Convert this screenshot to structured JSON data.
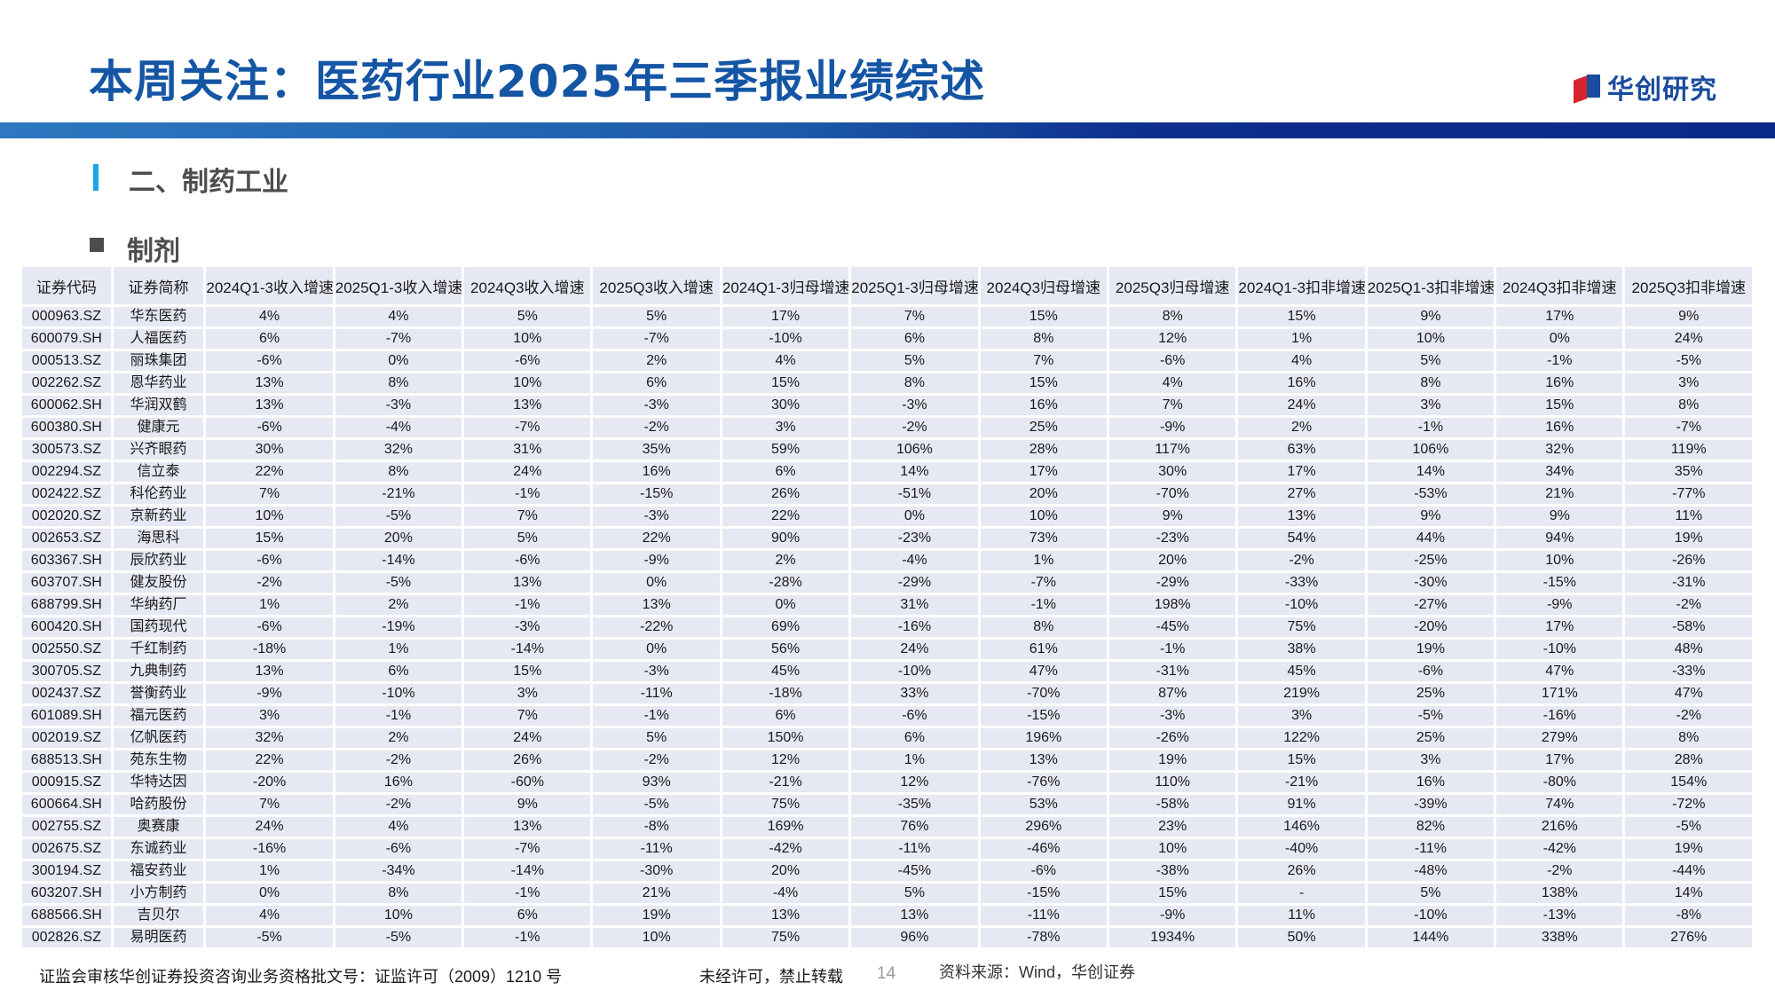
{
  "header": {
    "title": "本周关注：医药行业2025年三季报业绩综述",
    "logo_text": "华创研究",
    "brand_color": "#1455a4"
  },
  "section": {
    "title": "二、制药工业",
    "subtitle": "制剂"
  },
  "table": {
    "columns": [
      "证券代码",
      "证券简称",
      "2024Q1-3收入增速",
      "2025Q1-3收入增速",
      "2024Q3收入增速",
      "2025Q3收入增速",
      "2024Q1-3归母增速",
      "2025Q1-3归母增速",
      "2024Q3归母增速",
      "2025Q3归母增速",
      "2024Q1-3扣非增速",
      "2025Q1-3扣非增速",
      "2024Q3扣非增速",
      "2025Q3扣非增速"
    ],
    "rows": [
      [
        "000963.SZ",
        "华东医药",
        "4%",
        "4%",
        "5%",
        "5%",
        "17%",
        "7%",
        "15%",
        "8%",
        "15%",
        "9%",
        "17%",
        "9%"
      ],
      [
        "600079.SH",
        "人福医药",
        "6%",
        "-7%",
        "10%",
        "-7%",
        "-10%",
        "6%",
        "8%",
        "12%",
        "1%",
        "10%",
        "0%",
        "24%"
      ],
      [
        "000513.SZ",
        "丽珠集团",
        "-6%",
        "0%",
        "-6%",
        "2%",
        "4%",
        "5%",
        "7%",
        "-6%",
        "4%",
        "5%",
        "-1%",
        "-5%"
      ],
      [
        "002262.SZ",
        "恩华药业",
        "13%",
        "8%",
        "10%",
        "6%",
        "15%",
        "8%",
        "15%",
        "4%",
        "16%",
        "8%",
        "16%",
        "3%"
      ],
      [
        "600062.SH",
        "华润双鹤",
        "13%",
        "-3%",
        "13%",
        "-3%",
        "30%",
        "-3%",
        "16%",
        "7%",
        "24%",
        "3%",
        "15%",
        "8%"
      ],
      [
        "600380.SH",
        "健康元",
        "-6%",
        "-4%",
        "-7%",
        "-2%",
        "3%",
        "-2%",
        "25%",
        "-9%",
        "2%",
        "-1%",
        "16%",
        "-7%"
      ],
      [
        "300573.SZ",
        "兴齐眼药",
        "30%",
        "32%",
        "31%",
        "35%",
        "59%",
        "106%",
        "28%",
        "117%",
        "63%",
        "106%",
        "32%",
        "119%"
      ],
      [
        "002294.SZ",
        "信立泰",
        "22%",
        "8%",
        "24%",
        "16%",
        "6%",
        "14%",
        "17%",
        "30%",
        "17%",
        "14%",
        "34%",
        "35%"
      ],
      [
        "002422.SZ",
        "科伦药业",
        "7%",
        "-21%",
        "-1%",
        "-15%",
        "26%",
        "-51%",
        "20%",
        "-70%",
        "27%",
        "-53%",
        "21%",
        "-77%"
      ],
      [
        "002020.SZ",
        "京新药业",
        "10%",
        "-5%",
        "7%",
        "-3%",
        "22%",
        "0%",
        "10%",
        "9%",
        "13%",
        "9%",
        "9%",
        "11%"
      ],
      [
        "002653.SZ",
        "海思科",
        "15%",
        "20%",
        "5%",
        "22%",
        "90%",
        "-23%",
        "73%",
        "-23%",
        "54%",
        "44%",
        "94%",
        "19%"
      ],
      [
        "603367.SH",
        "辰欣药业",
        "-6%",
        "-14%",
        "-6%",
        "-9%",
        "2%",
        "-4%",
        "1%",
        "20%",
        "-2%",
        "-25%",
        "10%",
        "-26%"
      ],
      [
        "603707.SH",
        "健友股份",
        "-2%",
        "-5%",
        "13%",
        "0%",
        "-28%",
        "-29%",
        "-7%",
        "-29%",
        "-33%",
        "-30%",
        "-15%",
        "-31%"
      ],
      [
        "688799.SH",
        "华纳药厂",
        "1%",
        "2%",
        "-1%",
        "13%",
        "0%",
        "31%",
        "-1%",
        "198%",
        "-10%",
        "-27%",
        "-9%",
        "-2%"
      ],
      [
        "600420.SH",
        "国药现代",
        "-6%",
        "-19%",
        "-3%",
        "-22%",
        "69%",
        "-16%",
        "8%",
        "-45%",
        "75%",
        "-20%",
        "17%",
        "-58%"
      ],
      [
        "002550.SZ",
        "千红制药",
        "-18%",
        "1%",
        "-14%",
        "0%",
        "56%",
        "24%",
        "61%",
        "-1%",
        "38%",
        "19%",
        "-10%",
        "48%"
      ],
      [
        "300705.SZ",
        "九典制药",
        "13%",
        "6%",
        "15%",
        "-3%",
        "45%",
        "-10%",
        "47%",
        "-31%",
        "45%",
        "-6%",
        "47%",
        "-33%"
      ],
      [
        "002437.SZ",
        "誉衡药业",
        "-9%",
        "-10%",
        "3%",
        "-11%",
        "-18%",
        "33%",
        "-70%",
        "87%",
        "219%",
        "25%",
        "171%",
        "47%"
      ],
      [
        "601089.SH",
        "福元医药",
        "3%",
        "-1%",
        "7%",
        "-1%",
        "6%",
        "-6%",
        "-15%",
        "-3%",
        "3%",
        "-5%",
        "-16%",
        "-2%"
      ],
      [
        "002019.SZ",
        "亿帆医药",
        "32%",
        "2%",
        "24%",
        "5%",
        "150%",
        "6%",
        "196%",
        "-26%",
        "122%",
        "25%",
        "279%",
        "8%"
      ],
      [
        "688513.SH",
        "苑东生物",
        "22%",
        "-2%",
        "26%",
        "-2%",
        "12%",
        "1%",
        "13%",
        "19%",
        "15%",
        "3%",
        "17%",
        "28%"
      ],
      [
        "000915.SZ",
        "华特达因",
        "-20%",
        "16%",
        "-60%",
        "93%",
        "-21%",
        "12%",
        "-76%",
        "110%",
        "-21%",
        "16%",
        "-80%",
        "154%"
      ],
      [
        "600664.SH",
        "哈药股份",
        "7%",
        "-2%",
        "9%",
        "-5%",
        "75%",
        "-35%",
        "53%",
        "-58%",
        "91%",
        "-39%",
        "74%",
        "-72%"
      ],
      [
        "002755.SZ",
        "奥赛康",
        "24%",
        "4%",
        "13%",
        "-8%",
        "169%",
        "76%",
        "296%",
        "23%",
        "146%",
        "82%",
        "216%",
        "-5%"
      ],
      [
        "002675.SZ",
        "东诚药业",
        "-16%",
        "-6%",
        "-7%",
        "-11%",
        "-42%",
        "-11%",
        "-46%",
        "10%",
        "-40%",
        "-11%",
        "-42%",
        "19%"
      ],
      [
        "300194.SZ",
        "福安药业",
        "1%",
        "-34%",
        "-14%",
        "-30%",
        "20%",
        "-45%",
        "-6%",
        "-38%",
        "26%",
        "-48%",
        "-2%",
        "-44%"
      ],
      [
        "603207.SH",
        "小方制药",
        "0%",
        "8%",
        "-1%",
        "21%",
        "-4%",
        "5%",
        "-15%",
        "15%",
        "-",
        "5%",
        "138%",
        "14%"
      ],
      [
        "688566.SH",
        "吉贝尔",
        "4%",
        "10%",
        "6%",
        "19%",
        "13%",
        "13%",
        "-11%",
        "-9%",
        "11%",
        "-10%",
        "-13%",
        "-8%"
      ],
      [
        "002826.SZ",
        "易明医药",
        "-5%",
        "-5%",
        "-1%",
        "10%",
        "75%",
        "96%",
        "-78%",
        "1934%",
        "50%",
        "144%",
        "338%",
        "276%"
      ]
    ]
  },
  "footer": {
    "license": "证监会审核华创证券投资咨询业务资格批文号：证监许可（2009）1210 号",
    "notice": "未经许可，禁止转载",
    "page": "14",
    "source": "资料来源：Wind，华创证券"
  }
}
